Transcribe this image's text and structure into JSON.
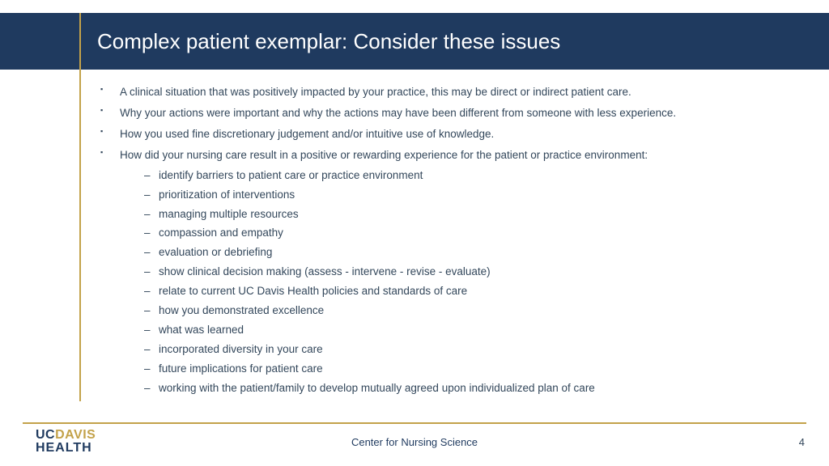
{
  "colors": {
    "header_bg": "#1f3a5f",
    "accent": "#c3a24a",
    "text": "#33475b",
    "title_text": "#ffffff",
    "background": "#ffffff"
  },
  "typography": {
    "title_fontsize": 26,
    "body_fontsize": 13.5,
    "footer_fontsize": 13,
    "logo_fontsize": 16
  },
  "title": "Complex patient exemplar: Consider these issues",
  "bullets": [
    {
      "text": "A clinical situation that was positively impacted by your practice, this may be direct or indirect patient care."
    },
    {
      "text": "Why your actions were important and why the actions may have been different from someone with less experience."
    },
    {
      "text": "How you used fine discretionary judgement and/or intuitive use of knowledge."
    },
    {
      "text": "How did your nursing care result in a positive or rewarding experience for the patient or practice environment:",
      "sub": [
        "identify barriers to patient care or practice environment",
        "prioritization of interventions",
        "managing multiple resources",
        "compassion and empathy",
        "evaluation or debriefing",
        "show clinical decision making (assess - intervene - revise - evaluate)",
        "relate to current UC Davis Health policies and standards of care",
        "how you demonstrated excellence",
        "what was learned",
        "incorporated diversity in your care",
        "future implications for patient care",
        "working with the patient/family to develop mutually agreed upon individualized plan of care"
      ]
    }
  ],
  "footer": {
    "center": "Center for Nursing Science",
    "page": "4",
    "logo_uc": "UC",
    "logo_davis": "DAVIS",
    "logo_line2": "HEALTH"
  }
}
